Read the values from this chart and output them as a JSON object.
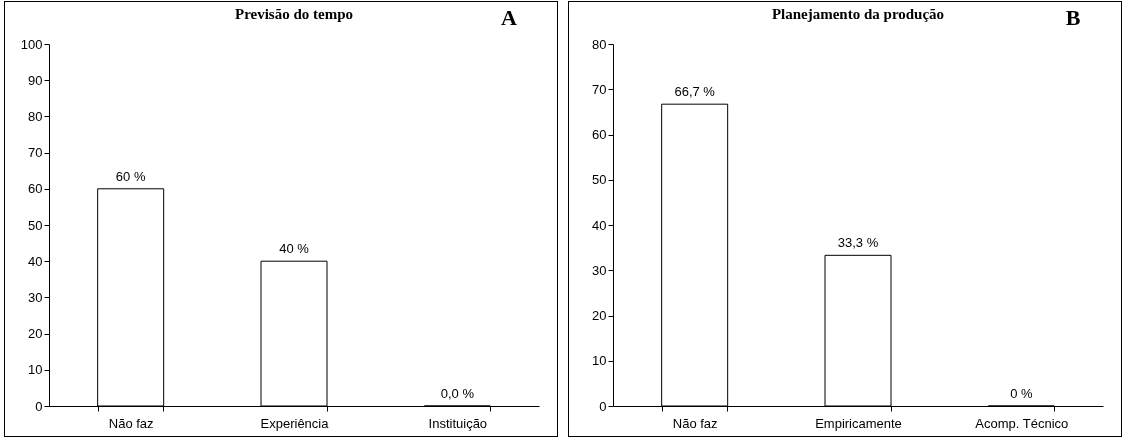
{
  "chart_data": [
    {
      "type": "bar",
      "title": "Previsão do tempo",
      "annotations": [
        "A"
      ],
      "categories": [
        "Não faz",
        "Experiência",
        "Instituição"
      ],
      "values": [
        60,
        40,
        0
      ],
      "value_labels": [
        "60 %",
        "40 %",
        "0,0 %"
      ],
      "color": "#ffffff",
      "ylim": [
        0,
        100
      ],
      "yticks": [
        0,
        10,
        20,
        30,
        40,
        50,
        60,
        70,
        80,
        90,
        100
      ]
    },
    {
      "type": "bar",
      "title": "Planejamento da produção",
      "annotations": [
        "B"
      ],
      "categories": [
        "Não faz",
        "Empiricamente",
        "Acomp. Técnico"
      ],
      "values": [
        66.7,
        33.3,
        0
      ],
      "value_labels": [
        "66,7 %",
        "33,3 %",
        "0 %"
      ],
      "color": "#ffffff",
      "ylim": [
        0,
        80
      ],
      "yticks": [
        0,
        10,
        20,
        30,
        40,
        50,
        60,
        70,
        80
      ]
    }
  ]
}
